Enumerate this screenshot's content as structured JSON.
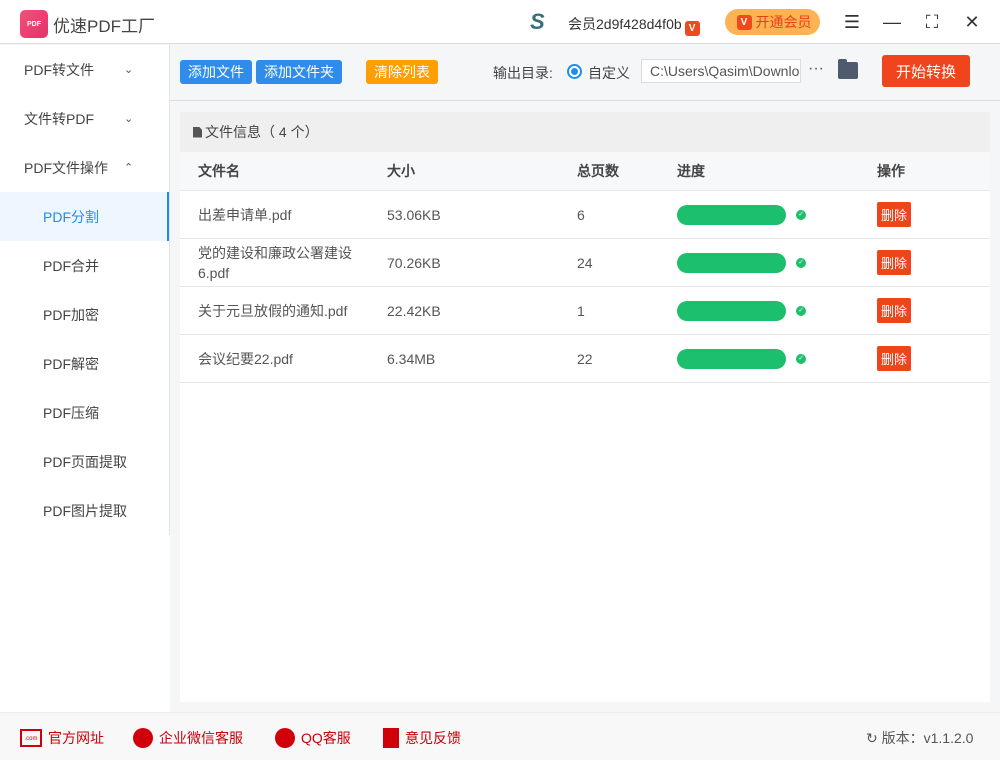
{
  "app": {
    "title": "优速PDF工厂",
    "logo_text": "PDF",
    "member": "会员2d9f428d4f0b",
    "vip_badge": "V",
    "open_vip": "开通会员"
  },
  "sidebar": {
    "items": [
      {
        "label": "PDF转文件",
        "chevron": "⌄"
      },
      {
        "label": "文件转PDF",
        "chevron": "⌄"
      },
      {
        "label": "PDF文件操作",
        "chevron": "⌃"
      }
    ],
    "subitems": [
      "PDF分割",
      "PDF合并",
      "PDF加密",
      "PDF解密",
      "PDF压缩",
      "PDF页面提取",
      "PDF图片提取"
    ],
    "active": "PDF分割"
  },
  "toolbar": {
    "add_file": "添加文件",
    "add_folder": "添加文件夹",
    "clear_list": "清除列表",
    "output_label": "输出目录:",
    "radio_label": "自定义",
    "path": "C:\\Users\\Qasim\\Downloads",
    "more": "···",
    "start": "开始转换"
  },
  "panel": {
    "title": "文件信息（ 4 个）",
    "columns": [
      "文件名",
      "大小",
      "总页数",
      "进度",
      "操作"
    ],
    "rows": [
      {
        "name": "出差申请单.pdf",
        "size": "53.06KB",
        "pages": "6",
        "progress": 100,
        "action": "删除"
      },
      {
        "name": "党的建设和廉政公署建设6.pdf",
        "size": "70.26KB",
        "pages": "24",
        "progress": 100,
        "action": "删除"
      },
      {
        "name": "关于元旦放假的通知.pdf",
        "size": "22.42KB",
        "pages": "1",
        "progress": 100,
        "action": "删除"
      },
      {
        "name": "会议纪要22.pdf",
        "size": "6.34MB",
        "pages": "22",
        "progress": 100,
        "action": "删除"
      }
    ]
  },
  "footer": {
    "website": "官方网址",
    "wechat": "企业微信客服",
    "qq": "QQ客服",
    "feedback": "意见反馈",
    "version": "版本：v1.1.2.0"
  },
  "colors": {
    "primary": "#1e8cf0",
    "orange": "#ff9f00",
    "danger": "#f0441c",
    "success": "#1bbf6c"
  }
}
